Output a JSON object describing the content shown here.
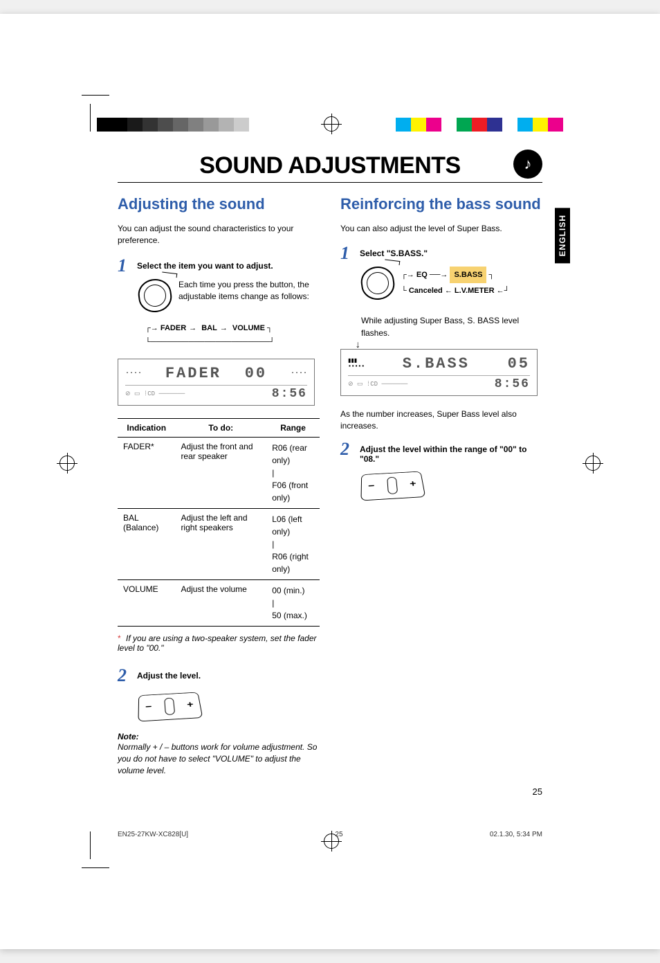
{
  "print_bars": {
    "left_colors": [
      "#000000",
      "#000000",
      "#1a1a1a",
      "#333333",
      "#4d4d4d",
      "#666666",
      "#808080",
      "#999999",
      "#b3b3b3",
      "#cccccc",
      "#ffffff"
    ],
    "right_colors": [
      "#00aeef",
      "#fff200",
      "#ec008c",
      "#ffffff",
      "#00a651",
      "#ed1c24",
      "#2e3192",
      "#ffffff",
      "#00aeef",
      "#fff200",
      "#ec008c"
    ]
  },
  "side_tab": "ENGLISH",
  "main_title": "SOUND ADJUSTMENTS",
  "title_icon_glyph": "♪",
  "left": {
    "heading": "Adjusting the sound",
    "intro": "You can adjust the sound characteristics to your preference.",
    "step1_label": "Select the item you want to adjust.",
    "step1_body": "Each time you press the button, the adjustable items change as follows:",
    "cycle": [
      "FADER",
      "BAL",
      "VOLUME"
    ],
    "lcd_main": "FADER",
    "lcd_value": "00",
    "lcd_clock": "8:56",
    "table": {
      "headers": [
        "Indication",
        "To do:",
        "Range"
      ],
      "rows": [
        {
          "ind": "FADER*",
          "todo": "Adjust the front and rear speaker",
          "range": "R06 (rear only)\n|\nF06 (front only)"
        },
        {
          "ind": "BAL (Balance)",
          "todo": "Adjust the left and right speakers",
          "range": "L06 (left only)\n|\nR06 (right only)"
        },
        {
          "ind": "VOLUME",
          "todo": "Adjust the volume",
          "range": "00 (min.)\n|\n50 (max.)"
        }
      ]
    },
    "footnote": "If you are using a two-speaker system, set the fader level to \"00.\"",
    "step2_label": "Adjust the level.",
    "note_head": "Note:",
    "note_body": "Normally + / – buttons work for volume adjustment. So you do not have to select \"VOLUME\" to adjust the volume level."
  },
  "right": {
    "heading": "Reinforcing the bass sound",
    "intro": "You can also adjust the level of Super Bass.",
    "step1_label": "Select \"S.BASS.\"",
    "cycle_top": [
      "EQ",
      "S.BASS"
    ],
    "cycle_bottom": [
      "Canceled",
      "L.V.METER"
    ],
    "flash_text": "While adjusting Super Bass, S. BASS level flashes.",
    "lcd_main": "S.BASS",
    "lcd_value": "05",
    "lcd_clock": "8:56",
    "caption": "As the number increases, Super Bass level also increases.",
    "step2_label": "Adjust the level within the range of \"00\" to \"08.\""
  },
  "page_number": "25",
  "footer": {
    "doc_id": "EN25-27KW-XC828[U]",
    "page": "25",
    "timestamp": "02.1.30, 5:34 PM"
  },
  "colors": {
    "accent": "#2e5daa",
    "highlight": "#f7d271",
    "footnote_ast": "#d43a3a"
  }
}
